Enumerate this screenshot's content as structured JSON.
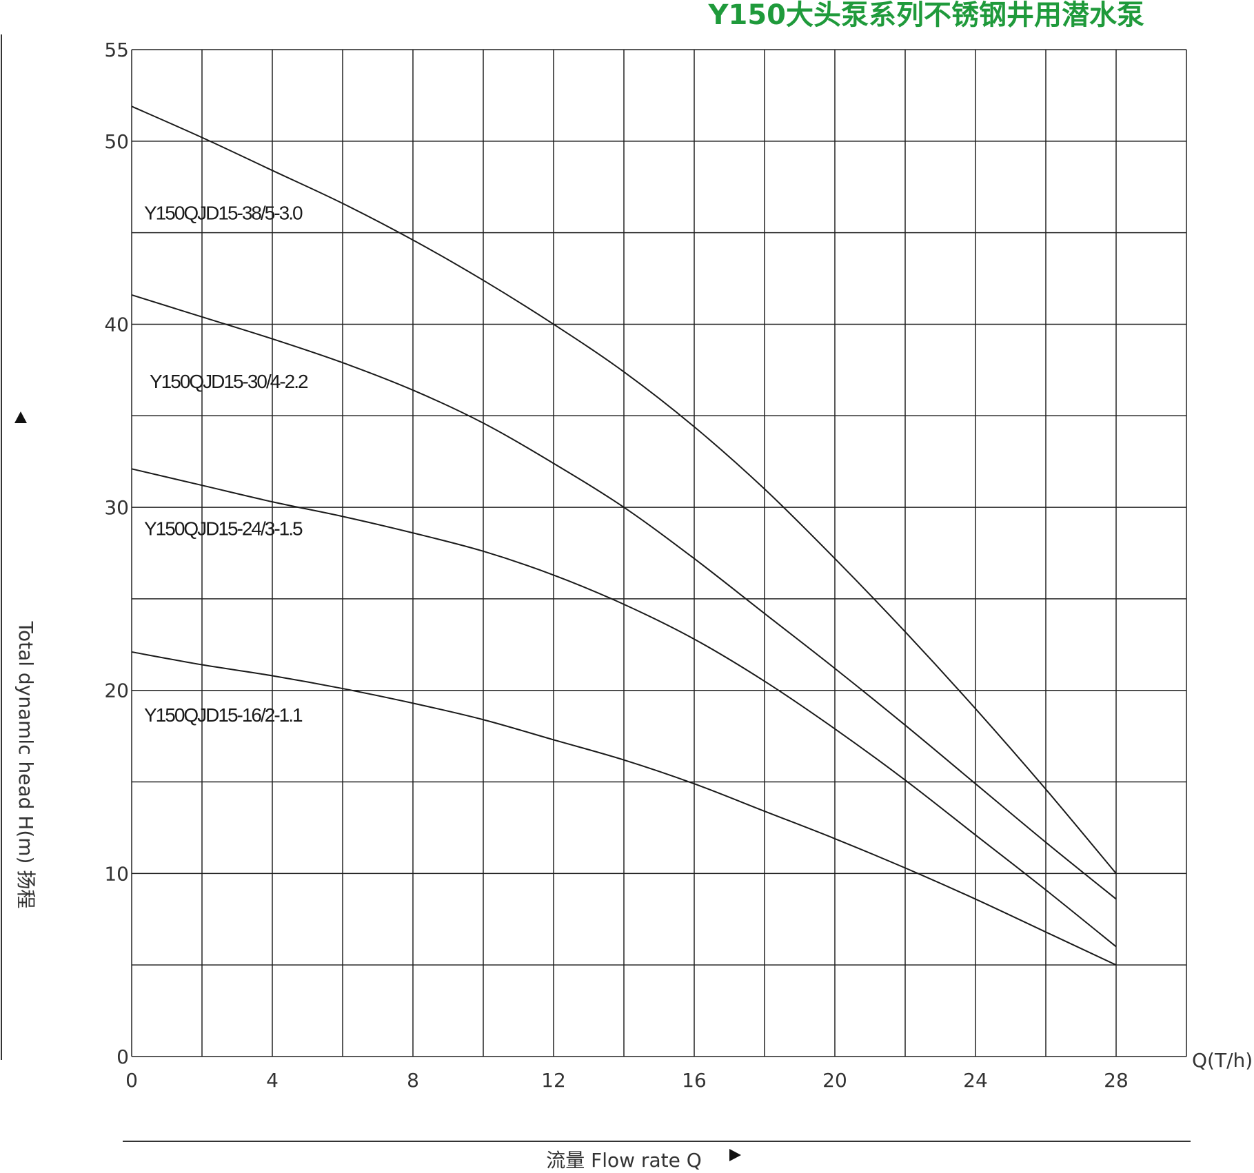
{
  "chart_data": {
    "type": "line",
    "title": "Y150大头泵系列不锈钢井用潜水泵",
    "xlabel": "流量  Flow rate Q",
    "ylabel": "Total dynamlc head H(m) 扬程",
    "x_unit_label": "Q(T/h)",
    "xlim": [
      0,
      30
    ],
    "ylim": [
      0,
      55
    ],
    "x_ticks": [
      "0",
      "4",
      "8",
      "12",
      "16",
      "20",
      "24",
      "28"
    ],
    "y_ticks": [
      "0",
      "10",
      "20",
      "30",
      "40",
      "50",
      "55"
    ],
    "grid": true,
    "series": [
      {
        "name": "Y150QJD15-38/5-3.0",
        "x": [
          0,
          2,
          4,
          6,
          8,
          10,
          12,
          14,
          16,
          18,
          20,
          22,
          24,
          26,
          28
        ],
        "y": [
          51.9,
          50.2,
          48.4,
          46.6,
          44.6,
          42.4,
          40.0,
          37.4,
          34.4,
          31.0,
          27.2,
          23.2,
          19.0,
          14.6,
          10.0
        ]
      },
      {
        "name": "Y150QJD15-30/4-2.2",
        "x": [
          0,
          2,
          4,
          6,
          8,
          10,
          12,
          14,
          16,
          18,
          20,
          22,
          24,
          26,
          28
        ],
        "y": [
          41.6,
          40.4,
          39.2,
          37.9,
          36.4,
          34.6,
          32.4,
          30.0,
          27.2,
          24.2,
          21.2,
          18.1,
          14.9,
          11.7,
          8.6
        ]
      },
      {
        "name": "Y150QJD15-24/3-1.5",
        "x": [
          0,
          2,
          4,
          6,
          8,
          10,
          12,
          14,
          16,
          18,
          20,
          22,
          24,
          26,
          28
        ],
        "y": [
          32.1,
          31.2,
          30.3,
          29.5,
          28.6,
          27.6,
          26.3,
          24.7,
          22.8,
          20.5,
          17.9,
          15.1,
          12.1,
          9.1,
          6.0
        ]
      },
      {
        "name": "Y150QJD15-16/2-1.1",
        "x": [
          0,
          2,
          4,
          6,
          8,
          10,
          12,
          14,
          16,
          18,
          20,
          22,
          24,
          26,
          28
        ],
        "y": [
          22.1,
          21.4,
          20.8,
          20.1,
          19.3,
          18.4,
          17.3,
          16.2,
          14.9,
          13.4,
          11.9,
          10.3,
          8.6,
          6.8,
          5.0
        ]
      }
    ]
  }
}
